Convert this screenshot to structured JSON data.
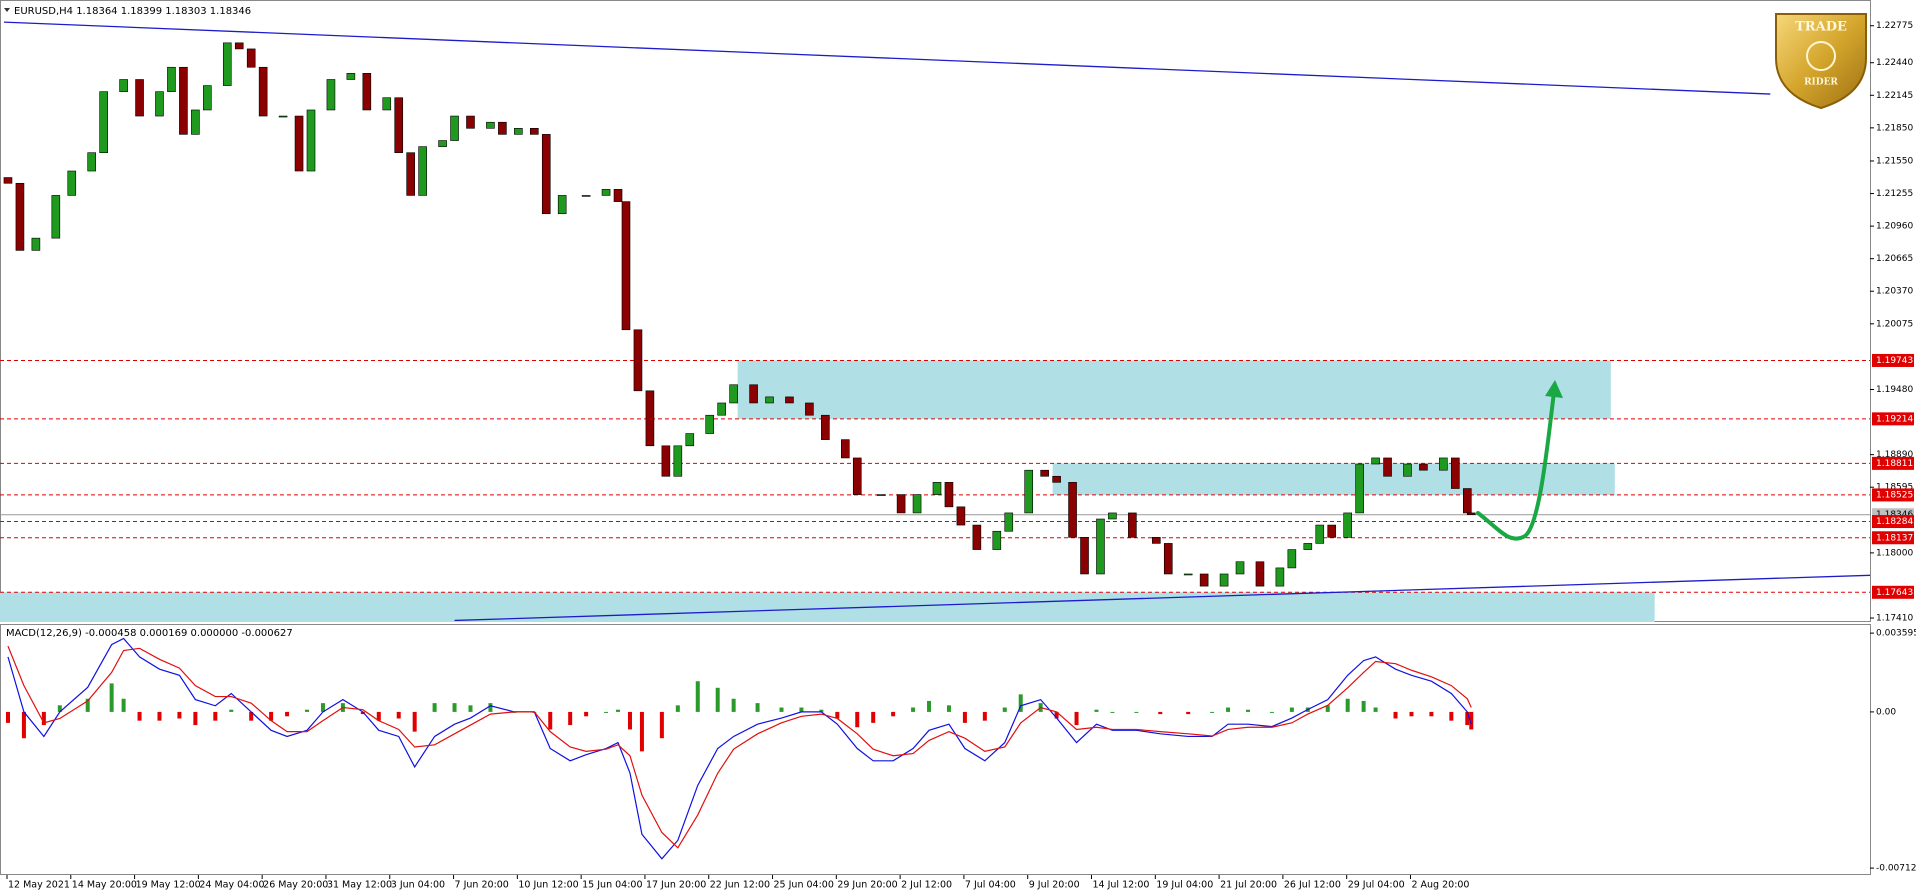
{
  "logo": {
    "top": "TRADE",
    "bottom": "RIDER"
  },
  "chart_data": [
    {
      "type": "candlestick",
      "title": "EURUSD,H4  1.18364 1.18399 1.18303 1.18346",
      "up_color": "#1f9a1f",
      "down_color": "#8b0000",
      "xlim": [
        -1,
        468
      ],
      "ylim": [
        1.17374,
        1.2299
      ],
      "xticks": [
        {
          "value": 0,
          "label": "12 May 2021"
        },
        {
          "value": 16,
          "label": "14 May 20:00"
        },
        {
          "value": 32,
          "label": "19 May 12:00"
        },
        {
          "value": 48,
          "label": "24 May 04:00"
        },
        {
          "value": 64,
          "label": "26 May 20:00"
        },
        {
          "value": 80,
          "label": "31 May 12:00"
        },
        {
          "value": 96,
          "label": "3 Jun 04:00"
        },
        {
          "value": 112,
          "label": "7 Jun 20:00"
        },
        {
          "value": 128,
          "label": "10 Jun 12:00"
        },
        {
          "value": 144,
          "label": "15 Jun 04:00"
        },
        {
          "value": 160,
          "label": "17 Jun 20:00"
        },
        {
          "value": 176,
          "label": "22 Jun 12:00"
        },
        {
          "value": 192,
          "label": "25 Jun 04:00"
        },
        {
          "value": 208,
          "label": "29 Jun 20:00"
        },
        {
          "value": 224,
          "label": "2 Jul 12:00"
        },
        {
          "value": 240,
          "label": "7 Jul 04:00"
        },
        {
          "value": 256,
          "label": "9 Jul 20:00"
        },
        {
          "value": 272,
          "label": "14 Jul 12:00"
        },
        {
          "value": 288,
          "label": "19 Jul 04:00"
        },
        {
          "value": 304,
          "label": "21 Jul 20:00"
        },
        {
          "value": 320,
          "label": "26 Jul 12:00"
        },
        {
          "value": 336,
          "label": "29 Jul 04:00"
        },
        {
          "value": 352,
          "label": "2 Aug 20:00"
        }
      ],
      "yticks": [
        1.22775,
        {
          "value": 1.2244,
          "label": "1.22440"
        },
        1.22145,
        {
          "value": 1.2185,
          "label": "1.21850"
        },
        {
          "value": 1.2155,
          "label": "1.21550"
        },
        1.21255,
        {
          "value": 1.2096,
          "label": "1.20960"
        },
        1.20665,
        {
          "value": 1.2037,
          "label": "1.20370"
        },
        1.20075,
        {
          "value": 1.1948,
          "label": "1.19480"
        },
        {
          "value": 1.1889,
          "label": "1.18890"
        },
        1.18595,
        {
          "value": 1.18,
          "label": "1.18000"
        },
        {
          "value": 1.1741,
          "label": "1.17410"
        }
      ],
      "x": [
        1,
        4,
        8,
        13,
        17,
        22,
        25,
        30,
        34,
        39,
        42,
        45,
        48,
        51,
        56,
        59,
        62,
        65,
        70,
        74,
        77,
        82,
        87,
        91,
        96,
        99,
        102,
        105,
        110,
        113,
        117,
        122,
        125,
        129,
        133,
        136,
        140,
        146,
        151,
        154,
        156,
        159,
        162,
        166,
        169,
        172,
        177,
        180,
        183,
        188,
        192,
        197,
        202,
        206,
        211,
        214,
        220,
        225,
        229,
        234,
        237,
        240,
        244,
        249,
        252,
        257,
        261,
        264,
        268,
        271,
        275,
        278,
        283,
        289,
        292,
        297,
        301,
        306,
        310,
        315,
        320,
        323,
        327,
        330,
        333,
        337,
        340,
        344,
        347,
        352,
        356,
        361,
        364,
        367,
        368
      ],
      "open": [
        1.214,
        1.21348,
        1.2074,
        1.20851,
        1.21238,
        1.21459,
        1.21625,
        1.22178,
        1.22288,
        1.21957,
        1.22178,
        1.22399,
        1.21791,
        1.22012,
        1.22233,
        1.2262,
        1.22565,
        1.22399,
        1.21957,
        1.21957,
        1.21459,
        1.22012,
        1.22288,
        1.22344,
        1.22012,
        1.22123,
        1.21625,
        1.21238,
        1.2168,
        1.21735,
        1.21957,
        1.21846,
        1.21901,
        1.21791,
        1.21846,
        1.21791,
        1.21072,
        1.21238,
        1.21238,
        1.21293,
        1.21182,
        1.20021,
        1.19468,
        1.1897,
        1.18694,
        1.1897,
        1.19081,
        1.19247,
        1.19358,
        1.19523,
        1.19358,
        1.19413,
        1.19358,
        1.19247,
        1.19026,
        1.1886,
        1.18528,
        1.18528,
        1.18362,
        1.18528,
        1.18639,
        1.18417,
        1.18252,
        1.1803,
        1.18196,
        1.18362,
        1.18749,
        1.18694,
        1.18639,
        1.18141,
        1.17809,
        1.18307,
        1.18362,
        1.18141,
        1.18086,
        1.17809,
        1.17809,
        1.17699,
        1.17809,
        1.1792,
        1.17699,
        1.17864,
        1.1803,
        1.18086,
        1.18252,
        1.18141,
        1.18362,
        1.18805,
        1.1886,
        1.18694,
        1.18805,
        1.18749,
        1.1886,
        1.18583,
        1.18362
      ],
      "close": [
        1.21348,
        1.2074,
        1.20851,
        1.21238,
        1.21459,
        1.21625,
        1.22178,
        1.22288,
        1.21957,
        1.22178,
        1.22399,
        1.21791,
        1.22012,
        1.22233,
        1.2262,
        1.22565,
        1.22399,
        1.21957,
        1.21957,
        1.21459,
        1.22012,
        1.22288,
        1.22344,
        1.22012,
        1.22123,
        1.21625,
        1.21238,
        1.2168,
        1.21735,
        1.21957,
        1.21846,
        1.21901,
        1.21791,
        1.21846,
        1.21791,
        1.21072,
        1.21238,
        1.21238,
        1.21293,
        1.21182,
        1.20021,
        1.19468,
        1.1897,
        1.18694,
        1.1897,
        1.19081,
        1.19247,
        1.19358,
        1.19523,
        1.19358,
        1.19413,
        1.19358,
        1.19247,
        1.19026,
        1.1886,
        1.18528,
        1.18528,
        1.18362,
        1.18528,
        1.18639,
        1.18417,
        1.18252,
        1.1803,
        1.18196,
        1.18362,
        1.18749,
        1.18694,
        1.18639,
        1.18141,
        1.17809,
        1.18307,
        1.18362,
        1.18141,
        1.18086,
        1.17809,
        1.17809,
        1.17699,
        1.17809,
        1.1792,
        1.17699,
        1.17864,
        1.1803,
        1.18086,
        1.18252,
        1.18141,
        1.18362,
        1.18805,
        1.1886,
        1.18694,
        1.18805,
        1.18749,
        1.1886,
        1.18583,
        1.18362,
        1.18346
      ],
      "zones": [
        {
          "x": [
            184,
            403
          ],
          "top": 1.19743,
          "bottom": 1.19214,
          "color": "#b0e0e6"
        },
        {
          "x": [
            263,
            404
          ],
          "top": 1.18811,
          "bottom": 1.18525,
          "color": "#b0e0e6"
        },
        {
          "x": [
            -1,
            414
          ],
          "top": 1.17643,
          "bottom": 1.17374,
          "color": "#b0e0e6"
        }
      ],
      "levels": [
        1.19743,
        1.19214,
        1.18811,
        1.18525,
        1.18284,
        1.18137,
        1.17643
      ],
      "level_color": "#e00000",
      "bid": 1.18346,
      "trendlines": [
        {
          "x": [
            0,
            443
          ],
          "y": [
            1.22808,
            1.22156
          ],
          "color": "#1c1ccc"
        },
        {
          "x": [
            113,
            468
          ],
          "y": [
            1.17388,
            1.17797
          ],
          "color": "#1c1ccc"
        }
      ]
    },
    {
      "type": "macd",
      "title": "MACD(12,26,9) -0.000458 0.000169 0.000000 -0.000627",
      "xlim": [
        -1,
        468
      ],
      "ylim": [
        -0.00744,
        0.00401
      ],
      "yticks": [
        0.003595,
        {
          "value": 0,
          "label": "0.00"
        },
        -0.007125
      ],
      "x": [
        1,
        5,
        10,
        14,
        21,
        27,
        30,
        34,
        39,
        44,
        48,
        53,
        57,
        62,
        67,
        71,
        76,
        80,
        85,
        90,
        94,
        99,
        103,
        108,
        113,
        117,
        122,
        128,
        133,
        137,
        142,
        146,
        151,
        154,
        157,
        160,
        165,
        169,
        174,
        179,
        183,
        189,
        195,
        200,
        205,
        209,
        214,
        218,
        223,
        228,
        232,
        237,
        241,
        246,
        251,
        255,
        260,
        264,
        269,
        274,
        278,
        284,
        290,
        297,
        303,
        307,
        312,
        318,
        323,
        327,
        332,
        337,
        341,
        344,
        349,
        353,
        358,
        363,
        367,
        368
      ],
      "histogram": {
        "up_color": "#2a9a2a",
        "down_color": "#e00000",
        "values": [
          -0.0005,
          -0.0012,
          -0.0006,
          0.0003,
          0.0006,
          0.0013,
          0.0006,
          -0.0004,
          -0.0004,
          -0.0003,
          -0.0006,
          -0.0004,
          0.0001,
          -0.0004,
          -0.0004,
          -0.0002,
          0.0001,
          0.0004,
          0.0004,
          -0.0001,
          -0.0004,
          -0.0003,
          -0.0009,
          0.0004,
          0.0004,
          0.0003,
          0.0004,
          0,
          0,
          -0.0008,
          -0.0006,
          -0.0002,
          0,
          0.0001,
          -0.0008,
          -0.0018,
          -0.0012,
          0.0003,
          0.0014,
          0.0011,
          0.0006,
          0.0004,
          0.0002,
          0.0002,
          0.0001,
          -0.0003,
          -0.0007,
          -0.0005,
          -0.0002,
          0.0002,
          0.0005,
          0.0003,
          -0.0005,
          -0.0004,
          0.0002,
          0.0008,
          0.0004,
          -0.0003,
          -0.0006,
          0.0001,
          0,
          0,
          -0.0001,
          -0.0001,
          0,
          0.0002,
          0.0001,
          0,
          0.0002,
          0.0002,
          0.0003,
          0.0006,
          0.0005,
          0.0002,
          -0.0003,
          -0.0002,
          -0.0002,
          -0.0004,
          -0.0006,
          -0.0008
        ]
      },
      "series": [
        {
          "color": "#1010e0",
          "values": [
            0.00251,
            0,
            -0.00112,
            0,
            0.00112,
            0.00307,
            0.00335,
            0.00251,
            0.00195,
            0.00167,
            0.00056,
            0.00028,
            0.00084,
            0,
            -0.00084,
            -0.00112,
            -0.00084,
            0,
            0.00056,
            0,
            -0.00084,
            -0.00112,
            -0.00251,
            -0.00112,
            -0.00056,
            -0.00028,
            0.00028,
            0,
            0,
            -0.00167,
            -0.00223,
            -0.00195,
            -0.00167,
            -0.0014,
            -0.00279,
            -0.00558,
            -0.0067,
            -0.00586,
            -0.00335,
            -0.00167,
            -0.00112,
            -0.00056,
            -0.00028,
            0,
            0,
            -0.00056,
            -0.00167,
            -0.00223,
            -0.00223,
            -0.00167,
            -0.00084,
            -0.00056,
            -0.00167,
            -0.00223,
            -0.0014,
            0.00028,
            0.00056,
            -0.00028,
            -0.0014,
            -0.00056,
            -0.00084,
            -0.00084,
            -0.001,
            -0.00112,
            -0.00112,
            -0.00056,
            -0.00056,
            -0.00067,
            -0.00028,
            0.00011,
            0.00056,
            0.00167,
            0.00234,
            0.00251,
            0.00195,
            0.00167,
            0.0014,
            0.00084,
            0,
            -0.00056
          ]
        },
        {
          "color": "#e01010",
          "values": [
            0.003,
            0.0012,
            -0.0005,
            -0.0003,
            0.0005,
            0.0018,
            0.0028,
            0.0029,
            0.0024,
            0.002,
            0.0012,
            0.0007,
            0.0007,
            0.0004,
            -0.0004,
            -0.0009,
            -0.0009,
            -0.0004,
            0.0002,
            0.0001,
            -0.0004,
            -0.0008,
            -0.0016,
            -0.0015,
            -0.001,
            -0.0006,
            -0.0001,
            0,
            0,
            -0.0009,
            -0.0016,
            -0.0018,
            -0.0017,
            -0.0015,
            -0.002,
            -0.0038,
            -0.0055,
            -0.0062,
            -0.0047,
            -0.0028,
            -0.0017,
            -0.001,
            -0.0005,
            -0.0002,
            -0.0001,
            -0.0003,
            -0.001,
            -0.0017,
            -0.002,
            -0.0019,
            -0.0013,
            -0.0009,
            -0.0012,
            -0.0018,
            -0.0016,
            -0.0005,
            0.0002,
            0,
            -0.0008,
            -0.0007,
            -0.0008,
            -0.0008,
            -0.0009,
            -0.001,
            -0.0011,
            -0.0008,
            -0.0007,
            -0.0007,
            -0.0005,
            -0.0001,
            0.0003,
            0.0011,
            0.0018,
            0.0023,
            0.0022,
            0.0019,
            0.0016,
            0.0012,
            0.0006,
            0.0002
          ]
        }
      ]
    }
  ]
}
